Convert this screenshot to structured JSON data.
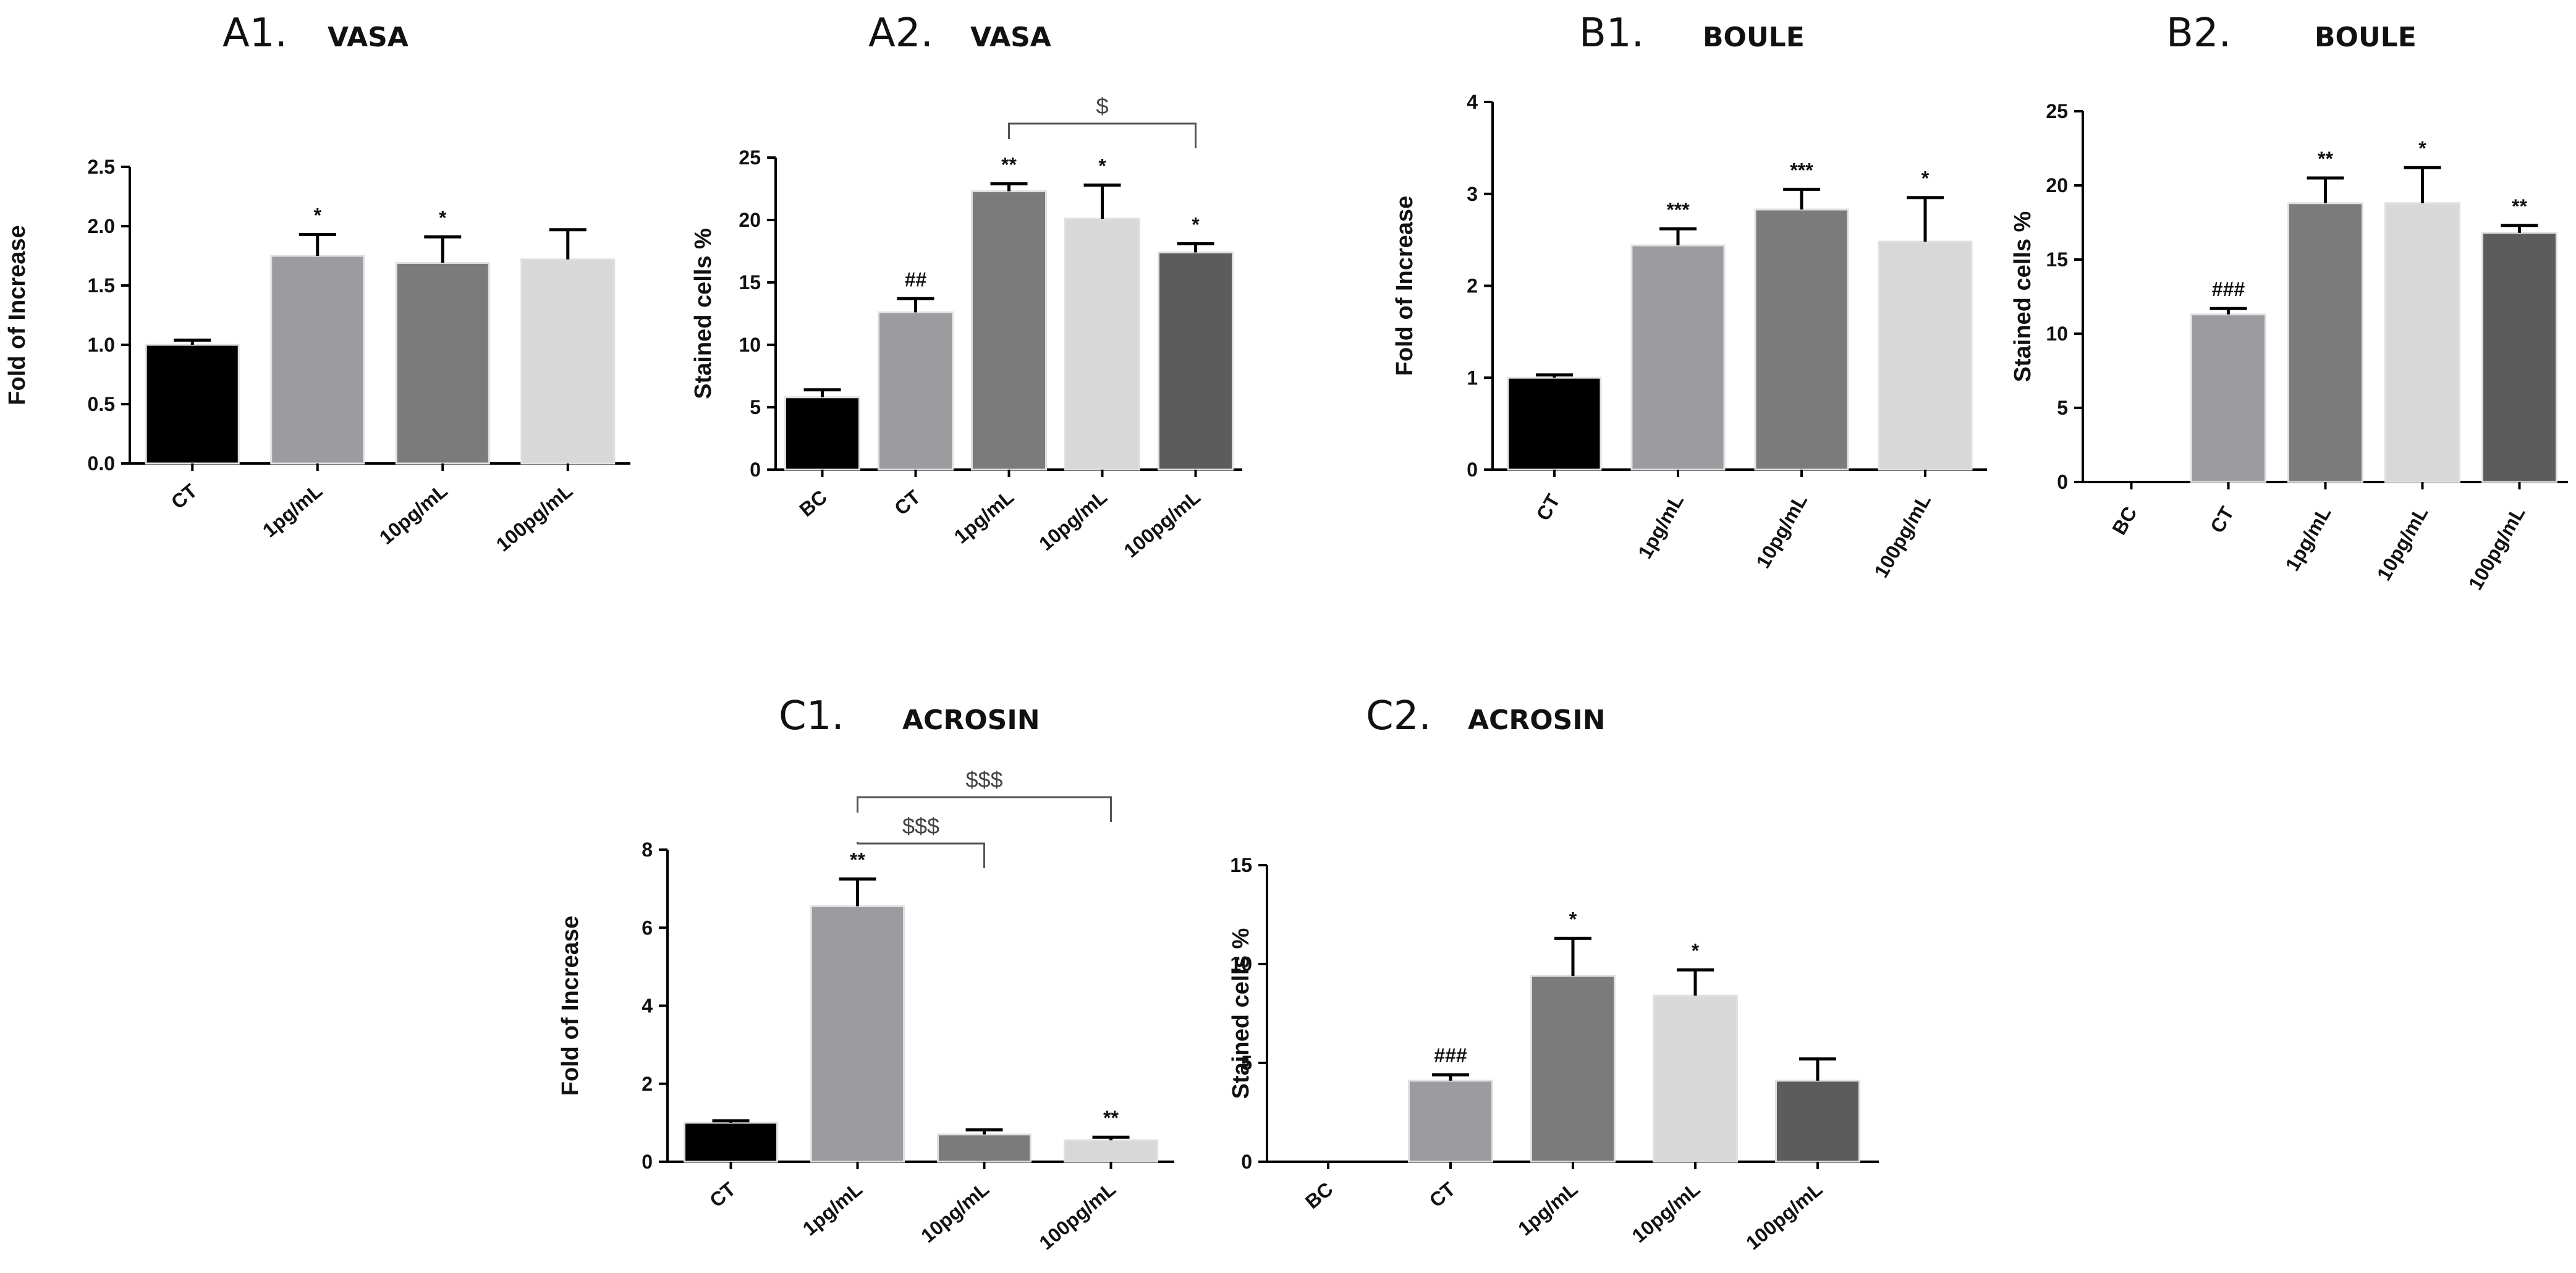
{
  "chart_data": [
    {
      "type": "bar",
      "panel": "A1.",
      "title": "VASA",
      "xlabel": "",
      "ylabel": "Fold of Increase",
      "ylim": [
        0,
        2.5
      ],
      "yticks": [
        "0.0",
        "0.5",
        "1.0",
        "1.5",
        "2.0",
        "2.5"
      ],
      "categories": [
        "CT",
        "1pg/mL",
        "10pg/mL",
        "100pg/mL"
      ],
      "values": [
        1.0,
        1.75,
        1.69,
        1.72
      ],
      "errors": [
        0.04,
        0.18,
        0.22,
        0.25
      ],
      "annotations": [
        "",
        "*",
        "*",
        ""
      ],
      "colors": [
        "#000000",
        "#9b9ba0",
        "#7b7b7b",
        "#d8d8d8"
      ],
      "brackets": []
    },
    {
      "type": "bar",
      "panel": "A2.",
      "title": "VASA",
      "xlabel": "",
      "ylabel": "Stained cells %",
      "ylim": [
        0,
        25
      ],
      "yticks": [
        "0",
        "5",
        "10",
        "15",
        "20",
        "25"
      ],
      "categories": [
        "BC",
        "CT",
        "1pg/mL",
        "10pg/mL",
        "100pg/mL"
      ],
      "values": [
        5.8,
        12.6,
        22.3,
        20.1,
        17.4
      ],
      "errors": [
        0.6,
        1.1,
        0.6,
        2.7,
        0.7
      ],
      "annotations": [
        "",
        "##",
        "**",
        "*",
        "*"
      ],
      "colors": [
        "#000000",
        "#9b9ba0",
        "#7b7b7b",
        "#d8d8d8",
        "#5c5c5c"
      ],
      "brackets": [
        {
          "from": 2,
          "to": 4,
          "label": "$"
        }
      ]
    },
    {
      "type": "bar",
      "panel": "B1.",
      "title": "BOULE",
      "xlabel": "",
      "ylabel": "Fold of Increase",
      "ylim": [
        0,
        4
      ],
      "yticks": [
        "0",
        "1",
        "2",
        "3",
        "4"
      ],
      "categories": [
        "CT",
        "1pg/mL",
        "10pg/mL",
        "100pg/mL"
      ],
      "values": [
        1.0,
        2.44,
        2.83,
        2.48
      ],
      "errors": [
        0.03,
        0.18,
        0.22,
        0.48
      ],
      "annotations": [
        "",
        "***",
        "***",
        "*"
      ],
      "colors": [
        "#000000",
        "#9b9ba0",
        "#7b7b7b",
        "#d8d8d8"
      ],
      "brackets": []
    },
    {
      "type": "bar",
      "panel": "B2.",
      "title": "BOULE",
      "xlabel": "",
      "ylabel": "Stained cells %",
      "ylim": [
        0,
        25
      ],
      "yticks": [
        "0",
        "5",
        "10",
        "15",
        "20",
        "25"
      ],
      "categories": [
        "BC",
        "CT",
        "1pg/mL",
        "10pg/mL",
        "100pg/mL"
      ],
      "values": [
        0,
        11.3,
        18.8,
        18.8,
        16.8
      ],
      "errors": [
        0,
        0.4,
        1.7,
        2.4,
        0.5
      ],
      "annotations": [
        "",
        "###",
        "**",
        "*",
        "**"
      ],
      "colors": [
        "#000000",
        "#9b9ba0",
        "#7b7b7b",
        "#d8d8d8",
        "#5c5c5c"
      ],
      "brackets": []
    },
    {
      "type": "bar",
      "panel": "C1.",
      "title": "ACROSIN",
      "xlabel": "",
      "ylabel": "Fold of Increase",
      "ylim": [
        0,
        8
      ],
      "yticks": [
        "0",
        "2",
        "4",
        "6",
        "8"
      ],
      "categories": [
        "CT",
        "1pg/mL",
        "10pg/mL",
        "100pg/mL"
      ],
      "values": [
        1.0,
        6.55,
        0.7,
        0.55
      ],
      "errors": [
        0.05,
        0.7,
        0.12,
        0.08
      ],
      "annotations": [
        "",
        "**",
        "",
        "**"
      ],
      "colors": [
        "#000000",
        "#9b9ba0",
        "#7b7b7b",
        "#d8d8d8"
      ],
      "brackets": [
        {
          "from": 1,
          "to": 2,
          "label": "$$$"
        },
        {
          "from": 1,
          "to": 3,
          "label": "$$$"
        }
      ]
    },
    {
      "type": "bar",
      "panel": "C2.",
      "title": "ACROSIN",
      "xlabel": "",
      "ylabel": "Stained cells %",
      "ylim": [
        0,
        15
      ],
      "yticks": [
        "0",
        "5",
        "10",
        "15"
      ],
      "categories": [
        "BC",
        "CT",
        "1pg/mL",
        "10pg/mL",
        "100pg/mL"
      ],
      "values": [
        0,
        4.1,
        9.4,
        8.4,
        4.1
      ],
      "errors": [
        0,
        0.3,
        1.9,
        1.3,
        1.1
      ],
      "annotations": [
        "",
        "###",
        "*",
        "*",
        ""
      ],
      "colors": [
        "#000000",
        "#9b9ba0",
        "#7b7b7b",
        "#d8d8d8",
        "#5c5c5c"
      ],
      "brackets": []
    }
  ]
}
